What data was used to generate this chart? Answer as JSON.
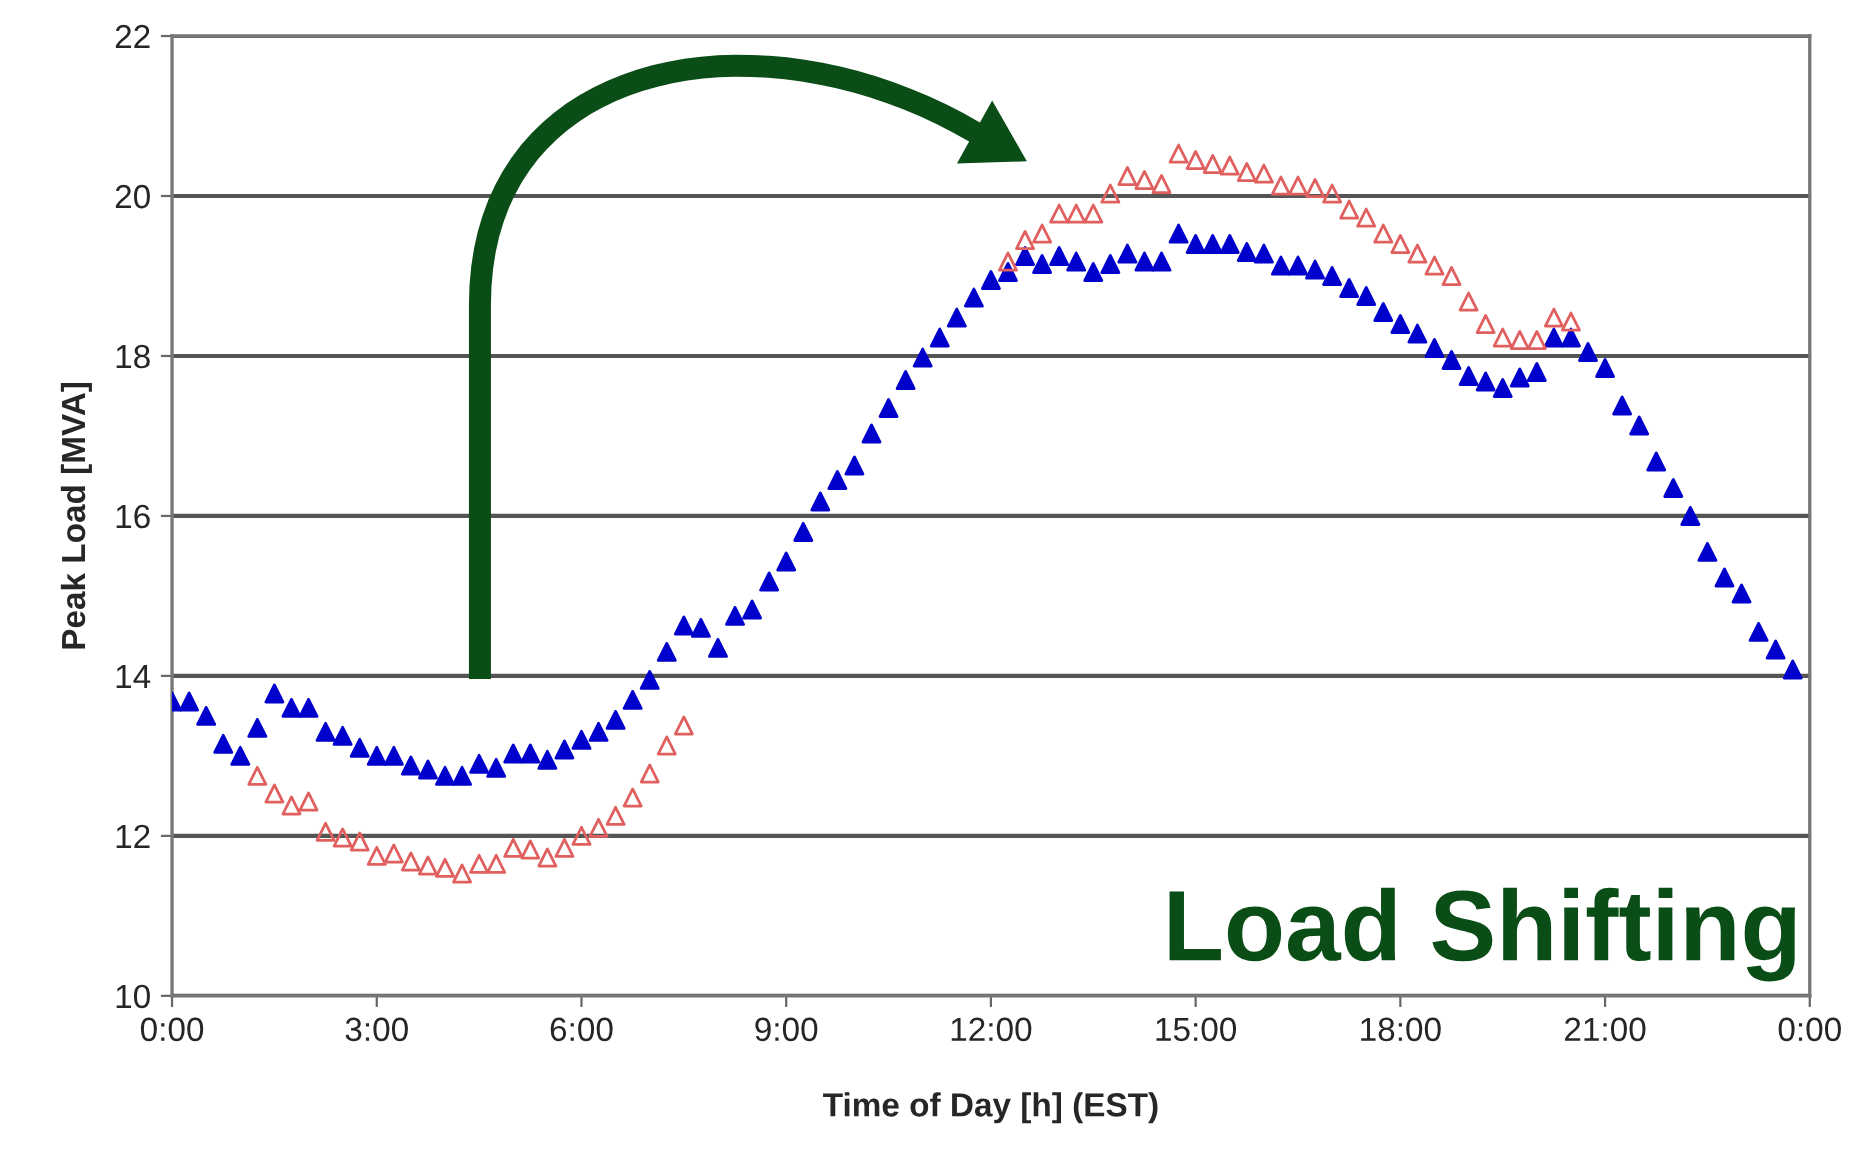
{
  "chart_data": {
    "type": "scatter",
    "xlabel": "Time of Day [h] (EST)",
    "ylabel": "Peak Load [MVA]",
    "annotations": [
      "Load Shifting"
    ],
    "xlim": [
      0,
      24
    ],
    "ylim": [
      10,
      22
    ],
    "xticks": [
      {
        "value": 0,
        "label": "0:00"
      },
      {
        "value": 3,
        "label": "3:00"
      },
      {
        "value": 6,
        "label": "6:00"
      },
      {
        "value": 9,
        "label": "9:00"
      },
      {
        "value": 12,
        "label": "12:00"
      },
      {
        "value": 15,
        "label": "15:00"
      },
      {
        "value": 18,
        "label": "18:00"
      },
      {
        "value": 21,
        "label": "21:00"
      },
      {
        "value": 24,
        "label": "0:00"
      }
    ],
    "yticks": [
      10,
      12,
      14,
      16,
      18,
      20,
      22
    ],
    "grid": "y",
    "marker": "triangle",
    "legend": false,
    "series": [
      {
        "color": "#0000cc",
        "x": [
          0,
          0.25,
          0.5,
          0.75,
          1,
          1.25,
          1.5,
          1.75,
          2,
          2.25,
          2.5,
          2.75,
          3,
          3.25,
          3.5,
          3.75,
          4,
          4.25,
          4.5,
          4.75,
          5,
          5.25,
          5.5,
          5.75,
          6,
          6.25,
          6.5,
          6.75,
          7,
          7.25,
          7.5,
          7.75,
          8,
          8.25,
          8.5,
          8.75,
          9,
          9.25,
          9.5,
          9.75,
          10,
          10.25,
          10.5,
          10.75,
          11,
          11.25,
          11.5,
          11.75,
          12,
          12.25,
          12.5,
          12.75,
          13,
          13.25,
          13.5,
          13.75,
          14,
          14.25,
          14.5,
          14.75,
          15,
          15.25,
          15.5,
          15.75,
          16,
          16.25,
          16.5,
          16.75,
          17,
          17.25,
          17.5,
          17.75,
          18,
          18.25,
          18.5,
          18.75,
          19,
          19.25,
          19.5,
          19.75,
          20,
          20.25,
          20.5,
          20.75,
          21,
          21.25,
          21.5,
          21.75,
          22,
          22.25,
          22.5,
          22.75,
          23,
          23.25,
          23.5,
          23.75
        ],
        "values": [
          13.68,
          13.68,
          13.5,
          13.15,
          13.0,
          13.35,
          13.78,
          13.6,
          13.6,
          13.3,
          13.25,
          13.1,
          13.0,
          13.0,
          12.88,
          12.83,
          12.75,
          12.75,
          12.9,
          12.85,
          13.03,
          13.03,
          12.95,
          13.08,
          13.2,
          13.3,
          13.45,
          13.7,
          13.95,
          14.3,
          14.63,
          14.6,
          14.35,
          14.75,
          14.83,
          15.18,
          15.43,
          15.8,
          16.18,
          16.45,
          16.63,
          17.03,
          17.35,
          17.7,
          17.98,
          18.23,
          18.48,
          18.73,
          18.95,
          19.05,
          19.25,
          19.15,
          19.25,
          19.18,
          19.05,
          19.15,
          19.28,
          19.18,
          19.18,
          19.53,
          19.4,
          19.4,
          19.4,
          19.3,
          19.28,
          19.13,
          19.13,
          19.08,
          19.0,
          18.85,
          18.75,
          18.55,
          18.4,
          18.28,
          18.1,
          17.95,
          17.75,
          17.68,
          17.6,
          17.73,
          17.8,
          18.23,
          18.23,
          18.05,
          17.85,
          17.38,
          17.13,
          16.68,
          16.35,
          16.0,
          15.55,
          15.23,
          15.03,
          14.55,
          14.33,
          14.08
        ]
      },
      {
        "color": "#e06060",
        "x": [
          1.25,
          1.5,
          1.75,
          2,
          2.25,
          2.5,
          2.75,
          3,
          3.25,
          3.5,
          3.75,
          4,
          4.25,
          4.5,
          4.75,
          5,
          5.25,
          5.5,
          5.75,
          6,
          6.25,
          6.5,
          6.75,
          7,
          7.25,
          7.5,
          12.25,
          12.5,
          12.75,
          13,
          13.25,
          13.5,
          13.75,
          14,
          14.25,
          14.5,
          14.75,
          15,
          15.25,
          15.5,
          15.75,
          16,
          16.25,
          16.5,
          16.75,
          17,
          17.25,
          17.5,
          17.75,
          18,
          18.25,
          18.5,
          18.75,
          19,
          19.25,
          19.5,
          19.75,
          20,
          20.25,
          20.5
        ],
        "values": [
          12.75,
          12.53,
          12.38,
          12.43,
          12.05,
          11.98,
          11.93,
          11.75,
          11.78,
          11.68,
          11.63,
          11.6,
          11.53,
          11.65,
          11.65,
          11.85,
          11.83,
          11.73,
          11.85,
          12.0,
          12.1,
          12.25,
          12.48,
          12.78,
          13.13,
          13.38,
          19.18,
          19.45,
          19.53,
          19.78,
          19.78,
          19.78,
          20.03,
          20.25,
          20.2,
          20.15,
          20.53,
          20.45,
          20.4,
          20.38,
          20.3,
          20.28,
          20.13,
          20.13,
          20.1,
          20.03,
          19.83,
          19.73,
          19.53,
          19.4,
          19.28,
          19.13,
          19.0,
          18.68,
          18.4,
          18.23,
          18.2,
          18.2,
          18.48,
          18.43
        ]
      }
    ]
  }
}
